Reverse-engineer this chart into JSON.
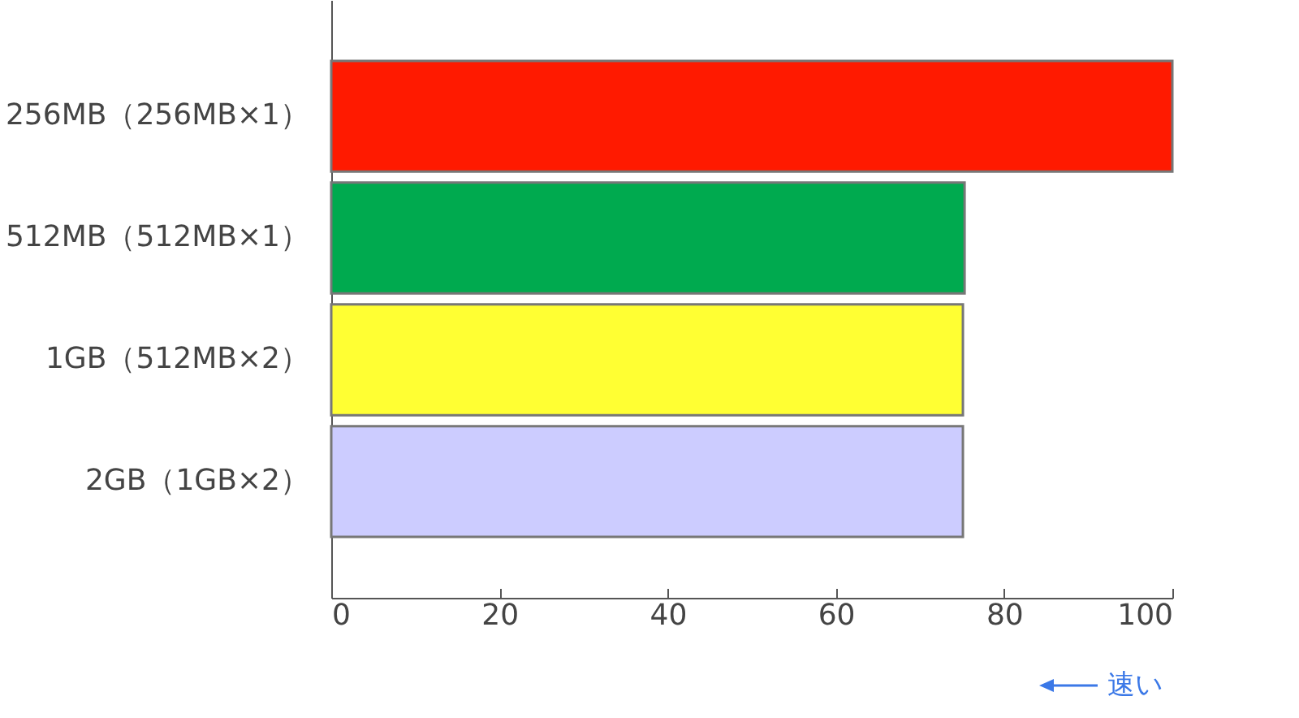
{
  "chart_data": {
    "type": "bar",
    "orientation": "horizontal",
    "categories": [
      "256MB（256MB×1）",
      "512MB（512MB×1）",
      "1GB（512MB×2）",
      "2GB（1GB×2）"
    ],
    "values": [
      100,
      75.3,
      75.1,
      75.1
    ],
    "colors": [
      "#ff1a00",
      "#00aa4f",
      "#ffff33",
      "#ccccff"
    ],
    "xlim": [
      0,
      100
    ],
    "xticks": [
      0,
      20,
      40,
      60,
      80,
      100
    ],
    "annotations": [
      "速い"
    ]
  }
}
